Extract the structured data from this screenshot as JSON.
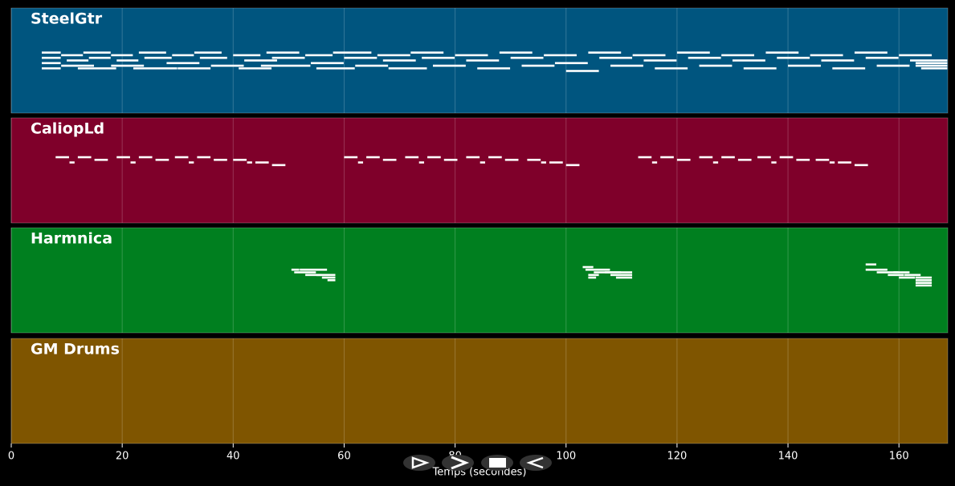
{
  "chart_data": {
    "type": "pianoroll",
    "xlabel": "Temps (secondes)",
    "xlim": [
      0,
      168.8
    ],
    "xticks": [
      0,
      20,
      40,
      60,
      80,
      100,
      120,
      140,
      160
    ],
    "pitch_lim": [
      40,
      80
    ],
    "grid": true,
    "tracks": [
      {
        "name": "SteelGtr",
        "color": "#00557f",
        "notes": [
          [
            5.5,
            9,
            63
          ],
          [
            5.5,
            9,
            61
          ],
          [
            5.5,
            9,
            59
          ],
          [
            5.5,
            9,
            57
          ],
          [
            9,
            13,
            62
          ],
          [
            10,
            14,
            60
          ],
          [
            9,
            15,
            58
          ],
          [
            13,
            18,
            63
          ],
          [
            14,
            18,
            61
          ],
          [
            12,
            19,
            57
          ],
          [
            18,
            22,
            62
          ],
          [
            19,
            23,
            60
          ],
          [
            18,
            24,
            58
          ],
          [
            23,
            28,
            63
          ],
          [
            24,
            29,
            61
          ],
          [
            22,
            30,
            57
          ],
          [
            29,
            33,
            62
          ],
          [
            28,
            34,
            59
          ],
          [
            30,
            36,
            57
          ],
          [
            33,
            38,
            63
          ],
          [
            34,
            39,
            61
          ],
          [
            36,
            42,
            58
          ],
          [
            40,
            45,
            62
          ],
          [
            42,
            48,
            60
          ],
          [
            41,
            47,
            57
          ],
          [
            46,
            52,
            63
          ],
          [
            47,
            53,
            61
          ],
          [
            45,
            54,
            58
          ],
          [
            53,
            58,
            62
          ],
          [
            54,
            60,
            59
          ],
          [
            55,
            62,
            57
          ],
          [
            58,
            65,
            63
          ],
          [
            60,
            66,
            61
          ],
          [
            62,
            68,
            58
          ],
          [
            66,
            72,
            62
          ],
          [
            67,
            73,
            60
          ],
          [
            68,
            75,
            57
          ],
          [
            72,
            78,
            63
          ],
          [
            74,
            80,
            61
          ],
          [
            76,
            82,
            58
          ],
          [
            80,
            86,
            62
          ],
          [
            82,
            88,
            60
          ],
          [
            84,
            90,
            57
          ],
          [
            88,
            94,
            63
          ],
          [
            90,
            96,
            61
          ],
          [
            92,
            98,
            58
          ],
          [
            96,
            102,
            62
          ],
          [
            98,
            104,
            59
          ],
          [
            100,
            106,
            56
          ],
          [
            104,
            110,
            63
          ],
          [
            106,
            112,
            61
          ],
          [
            108,
            114,
            58
          ],
          [
            112,
            118,
            62
          ],
          [
            114,
            120,
            60
          ],
          [
            116,
            122,
            57
          ],
          [
            120,
            126,
            63
          ],
          [
            122,
            128,
            61
          ],
          [
            124,
            130,
            58
          ],
          [
            128,
            134,
            62
          ],
          [
            130,
            136,
            60
          ],
          [
            132,
            138,
            57
          ],
          [
            136,
            142,
            63
          ],
          [
            138,
            144,
            61
          ],
          [
            140,
            146,
            58
          ],
          [
            144,
            150,
            62
          ],
          [
            146,
            152,
            60
          ],
          [
            148,
            154,
            57
          ],
          [
            152,
            158,
            63
          ],
          [
            154,
            160,
            61
          ],
          [
            156,
            162,
            58
          ],
          [
            160,
            166,
            62
          ],
          [
            162,
            168.8,
            60
          ],
          [
            163,
            168.8,
            59
          ],
          [
            163,
            168.8,
            58
          ],
          [
            164,
            168.8,
            57
          ]
        ]
      },
      {
        "name": "CaliopLd",
        "color": "#7f002a",
        "notes": [
          [
            8,
            10.5,
            65
          ],
          [
            10.5,
            11.5,
            63
          ],
          [
            12,
            14.5,
            65
          ],
          [
            15,
            17.5,
            64
          ],
          [
            19,
            21.5,
            65
          ],
          [
            21.5,
            22.5,
            63
          ],
          [
            23,
            25.5,
            65
          ],
          [
            26,
            28.5,
            64
          ],
          [
            29.5,
            32,
            65
          ],
          [
            32,
            33,
            63
          ],
          [
            33.5,
            36,
            65
          ],
          [
            36.5,
            39,
            64
          ],
          [
            40,
            42.5,
            64
          ],
          [
            42.5,
            43.5,
            63
          ],
          [
            44,
            46.5,
            63
          ],
          [
            47,
            49.5,
            62
          ],
          [
            60,
            62.5,
            65
          ],
          [
            62.5,
            63.5,
            63
          ],
          [
            64,
            66.5,
            65
          ],
          [
            67,
            69.5,
            64
          ],
          [
            71,
            73.5,
            65
          ],
          [
            73.5,
            74.5,
            63
          ],
          [
            75,
            77.5,
            65
          ],
          [
            78,
            80.5,
            64
          ],
          [
            82,
            84.5,
            65
          ],
          [
            84.5,
            85.5,
            63
          ],
          [
            86,
            88.5,
            65
          ],
          [
            89,
            91.5,
            64
          ],
          [
            93,
            95.5,
            64
          ],
          [
            95.5,
            96.5,
            63
          ],
          [
            97,
            99.5,
            63
          ],
          [
            100,
            102.5,
            62
          ],
          [
            113,
            115.5,
            65
          ],
          [
            115.5,
            116.5,
            63
          ],
          [
            117,
            119.5,
            65
          ],
          [
            120,
            122.5,
            64
          ],
          [
            124,
            126.5,
            65
          ],
          [
            126.5,
            127.5,
            63
          ],
          [
            128,
            130.5,
            65
          ],
          [
            131,
            133.5,
            64
          ],
          [
            134.5,
            137,
            65
          ],
          [
            137,
            138,
            63
          ],
          [
            138.5,
            141,
            65
          ],
          [
            141.5,
            144,
            64
          ],
          [
            145,
            147.5,
            64
          ],
          [
            147.5,
            148.5,
            63
          ],
          [
            149,
            151.5,
            63
          ],
          [
            152,
            154.5,
            62
          ]
        ]
      },
      {
        "name": "Harmnica",
        "color": "#007f1f",
        "notes": [
          [
            50.5,
            52,
            64
          ],
          [
            51,
            55,
            63
          ],
          [
            52,
            57,
            64
          ],
          [
            53,
            56,
            62
          ],
          [
            55,
            58.5,
            62
          ],
          [
            56,
            58.5,
            61
          ],
          [
            57,
            58.5,
            60
          ],
          [
            103,
            105,
            65
          ],
          [
            103.5,
            108,
            64
          ],
          [
            104,
            106,
            62
          ],
          [
            105,
            110,
            63
          ],
          [
            107,
            112,
            63
          ],
          [
            108,
            112,
            62
          ],
          [
            109,
            112,
            61
          ],
          [
            104,
            105.5,
            61
          ],
          [
            154,
            156,
            66
          ],
          [
            154,
            158,
            64
          ],
          [
            156,
            160,
            63
          ],
          [
            158,
            161,
            62
          ],
          [
            159,
            162,
            63
          ],
          [
            160,
            163,
            61
          ],
          [
            161,
            164,
            62
          ],
          [
            163,
            166,
            61
          ],
          [
            163,
            166,
            60
          ],
          [
            163,
            166,
            59
          ],
          [
            163,
            166,
            58
          ]
        ]
      },
      {
        "name": "GM Drums",
        "color": "#7f5500",
        "notes": []
      }
    ]
  }
}
